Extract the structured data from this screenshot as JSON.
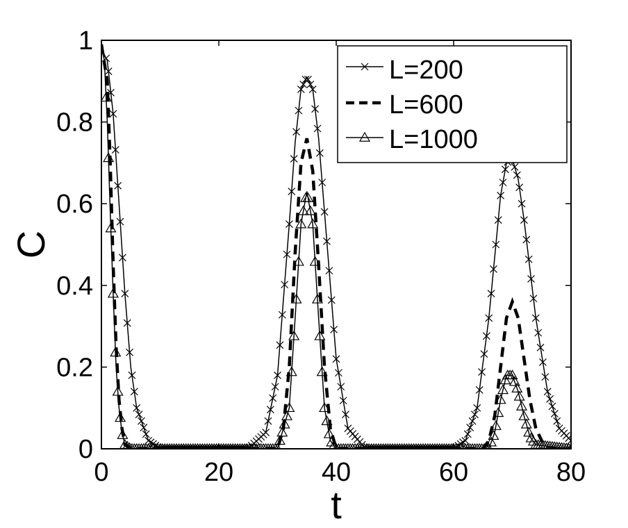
{
  "chart_data": {
    "type": "line",
    "title": "",
    "xlabel": "t",
    "ylabel": "C",
    "xlim": [
      0,
      80
    ],
    "ylim": [
      0,
      1
    ],
    "xticks": [
      0,
      20,
      40,
      60,
      80
    ],
    "xtick_labels": [
      "0",
      "20",
      "40",
      "60",
      "80"
    ],
    "yticks": [
      0,
      0.2,
      0.4,
      0.6,
      0.8,
      1
    ],
    "ytick_labels": [
      "0",
      "0.2",
      "0.4",
      "0.6",
      "0.8",
      "1"
    ],
    "grid": false,
    "legend_position": "top-right",
    "series": [
      {
        "name": "L=200",
        "line_style": "solid",
        "marker": "x",
        "color": "#000000",
        "x": [
          0,
          1,
          2,
          3,
          4,
          5,
          6,
          8,
          10,
          15,
          20,
          25,
          28,
          30,
          32,
          33,
          34,
          35,
          36,
          37,
          38,
          40,
          42,
          45,
          50,
          55,
          60,
          62,
          64,
          66,
          68,
          69,
          70,
          71,
          72,
          74,
          76,
          78,
          80
        ],
        "y": [
          0.98,
          0.95,
          0.82,
          0.6,
          0.38,
          0.2,
          0.1,
          0.02,
          0.0,
          0.0,
          0.0,
          0.0,
          0.04,
          0.18,
          0.55,
          0.75,
          0.88,
          0.91,
          0.88,
          0.76,
          0.58,
          0.22,
          0.05,
          0.0,
          0.0,
          0.0,
          0.0,
          0.02,
          0.1,
          0.32,
          0.62,
          0.7,
          0.71,
          0.66,
          0.56,
          0.32,
          0.14,
          0.05,
          0.02
        ]
      },
      {
        "name": "L=600",
        "line_style": "dashed",
        "marker": "none",
        "color": "#000000",
        "x": [
          0,
          1,
          1.5,
          2,
          2.5,
          3,
          3.5,
          4,
          5,
          6,
          10,
          20,
          30,
          31,
          32,
          33,
          34,
          35,
          36,
          37,
          38,
          39,
          40,
          50,
          60,
          65,
          66,
          67,
          68,
          69,
          70,
          71,
          72,
          73,
          74,
          75,
          76,
          80
        ],
        "y": [
          0.99,
          0.9,
          0.7,
          0.45,
          0.25,
          0.12,
          0.05,
          0.01,
          0.0,
          0.0,
          0.0,
          0.0,
          0.0,
          0.05,
          0.2,
          0.48,
          0.7,
          0.76,
          0.68,
          0.45,
          0.2,
          0.05,
          0.0,
          0.0,
          0.0,
          0.0,
          0.02,
          0.08,
          0.2,
          0.32,
          0.36,
          0.32,
          0.22,
          0.12,
          0.05,
          0.02,
          0.0,
          0.0
        ]
      },
      {
        "name": "L=1000",
        "line_style": "solid",
        "marker": "triangle",
        "color": "#000000",
        "x": [
          0,
          0.5,
          1,
          1.5,
          2,
          2.5,
          3,
          3.5,
          4,
          5,
          10,
          20,
          30,
          32,
          33,
          34,
          35,
          36,
          37,
          38,
          39,
          40,
          50,
          60,
          66,
          67,
          68,
          69,
          70,
          71,
          72,
          73,
          74,
          80
        ],
        "y": [
          0.99,
          0.95,
          0.8,
          0.58,
          0.38,
          0.2,
          0.1,
          0.04,
          0.01,
          0.0,
          0.0,
          0.0,
          0.0,
          0.1,
          0.32,
          0.55,
          0.63,
          0.55,
          0.32,
          0.1,
          0.02,
          0.0,
          0.0,
          0.0,
          0.0,
          0.04,
          0.12,
          0.18,
          0.18,
          0.14,
          0.08,
          0.03,
          0.01,
          0.0
        ]
      }
    ]
  }
}
